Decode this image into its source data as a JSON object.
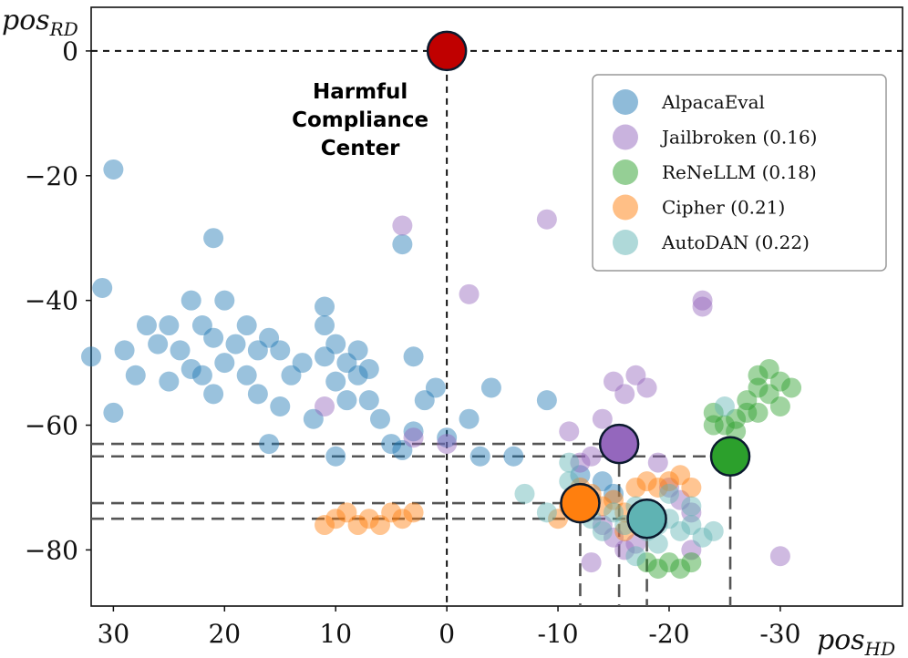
{
  "chart_data": {
    "type": "scatter",
    "xlabel": "pos",
    "xlabel_sub": "HD",
    "ylabel": "pos",
    "ylabel_sub": "RD",
    "xlim": [
      32,
      -41
    ],
    "ylim": [
      -89,
      7
    ],
    "x_ticks": [
      30,
      20,
      10,
      0,
      -10,
      -20,
      -30
    ],
    "x_tick_labels": [
      "30",
      "20",
      "10",
      "0",
      "-10",
      "-20",
      "-30"
    ],
    "y_ticks": [
      0,
      -20,
      -40,
      -60,
      -80
    ],
    "y_tick_labels": [
      "0",
      "−20",
      "−40",
      "−60",
      "−80"
    ],
    "annotation": {
      "lines": [
        "Harmful",
        "Compliance",
        "Center"
      ],
      "x": 0,
      "y": 0
    },
    "center": {
      "x": 0,
      "y": 0,
      "color": "#c00000"
    },
    "legend_position": "top-right",
    "series": [
      {
        "name": "AlpacaEval",
        "color": "#1f77b4",
        "centroid": null,
        "points": [
          [
            30,
            -19
          ],
          [
            31,
            -38
          ],
          [
            32,
            -49
          ],
          [
            30,
            -58
          ],
          [
            29,
            -48
          ],
          [
            28,
            -52
          ],
          [
            27,
            -44
          ],
          [
            26,
            -47
          ],
          [
            25,
            -44
          ],
          [
            25,
            -53
          ],
          [
            24,
            -48
          ],
          [
            23,
            -40
          ],
          [
            23,
            -51
          ],
          [
            22,
            -44
          ],
          [
            22,
            -52
          ],
          [
            21,
            -30
          ],
          [
            21,
            -46
          ],
          [
            21,
            -55
          ],
          [
            20,
            -40
          ],
          [
            20,
            -50
          ],
          [
            19,
            -47
          ],
          [
            18,
            -44
          ],
          [
            18,
            -52
          ],
          [
            17,
            -48
          ],
          [
            17,
            -55
          ],
          [
            16,
            -46
          ],
          [
            16,
            -63
          ],
          [
            15,
            -48
          ],
          [
            15,
            -57
          ],
          [
            14,
            -52
          ],
          [
            13,
            -50
          ],
          [
            12,
            -59
          ],
          [
            11,
            -41
          ],
          [
            11,
            -44
          ],
          [
            11,
            -49
          ],
          [
            10,
            -47
          ],
          [
            10,
            -53
          ],
          [
            10,
            -65
          ],
          [
            9,
            -50
          ],
          [
            9,
            -56
          ],
          [
            8,
            -48
          ],
          [
            8,
            -52
          ],
          [
            7,
            -51
          ],
          [
            7,
            -56
          ],
          [
            6,
            -59
          ],
          [
            5,
            -63
          ],
          [
            4,
            -31
          ],
          [
            4,
            -64
          ],
          [
            3,
            -49
          ],
          [
            3,
            -61
          ],
          [
            2,
            -56
          ],
          [
            1,
            -54
          ],
          [
            0,
            -62
          ],
          [
            -2,
            -59
          ],
          [
            -3,
            -65
          ],
          [
            -4,
            -54
          ],
          [
            -6,
            -65
          ],
          [
            -9,
            -56
          ],
          [
            -12,
            -68
          ],
          [
            -13,
            -72
          ],
          [
            -14,
            -69
          ],
          [
            -15,
            -71
          ]
        ]
      },
      {
        "name": "Jailbroken (0.16)",
        "color": "#9467bd",
        "centroid": [
          -15.5,
          -63
        ],
        "points": [
          [
            4,
            -28
          ],
          [
            0,
            -63
          ],
          [
            -2,
            -39
          ],
          [
            -9,
            -27
          ],
          [
            -11,
            -61
          ],
          [
            -12,
            -66
          ],
          [
            -13,
            -65
          ],
          [
            -14,
            -59
          ],
          [
            -15,
            -53
          ],
          [
            -16,
            -55
          ],
          [
            -17,
            -52
          ],
          [
            -18,
            -54
          ],
          [
            -19,
            -66
          ],
          [
            -20,
            -70
          ],
          [
            -21,
            -72
          ],
          [
            -22,
            -74
          ],
          [
            -23,
            -40
          ],
          [
            -23,
            -41
          ],
          [
            -14,
            -76
          ],
          [
            -15,
            -78
          ],
          [
            -16,
            -80
          ],
          [
            -17,
            -79
          ],
          [
            -13,
            -82
          ],
          [
            -22,
            -80
          ],
          [
            -30,
            -81
          ],
          [
            11,
            -57
          ],
          [
            3,
            -62
          ]
        ]
      },
      {
        "name": "ReNeLLM (0.18)",
        "color": "#2ca02c",
        "centroid": [
          -25.5,
          -65
        ],
        "points": [
          [
            -24,
            -60
          ],
          [
            -24,
            -58
          ],
          [
            -25,
            -60
          ],
          [
            -26,
            -59
          ],
          [
            -27,
            -58
          ],
          [
            -27,
            -56
          ],
          [
            -28,
            -54
          ],
          [
            -28,
            -52
          ],
          [
            -29,
            -51
          ],
          [
            -29,
            -55
          ],
          [
            -30,
            -53
          ],
          [
            -30,
            -57
          ],
          [
            -31,
            -54
          ],
          [
            -28,
            -58
          ],
          [
            -26,
            -61
          ],
          [
            -18,
            -82
          ],
          [
            -19,
            -83
          ],
          [
            -20,
            -82
          ],
          [
            -21,
            -83
          ],
          [
            -22,
            -82
          ]
        ]
      },
      {
        "name": "Cipher (0.21)",
        "color": "#ff7f0e",
        "centroid": [
          -12,
          -72.5
        ],
        "points": [
          [
            3,
            -74
          ],
          [
            4,
            -75
          ],
          [
            5,
            -74
          ],
          [
            6,
            -76
          ],
          [
            7,
            -75
          ],
          [
            8,
            -76
          ],
          [
            9,
            -74
          ],
          [
            10,
            -75
          ],
          [
            11,
            -76
          ],
          [
            -12,
            -70
          ],
          [
            -13,
            -71
          ],
          [
            -14,
            -73
          ],
          [
            -15,
            -72
          ],
          [
            -16,
            -74
          ],
          [
            -17,
            -70
          ],
          [
            -18,
            -69
          ],
          [
            -19,
            -70
          ],
          [
            -20,
            -69
          ],
          [
            -21,
            -68
          ],
          [
            -22,
            -70
          ],
          [
            -11,
            -73
          ],
          [
            -10,
            -75
          ],
          [
            -16,
            -77
          ],
          [
            -18,
            -76
          ]
        ]
      },
      {
        "name": "AutoDAN (0.22)",
        "color": "#5fb3b3",
        "centroid": [
          -18,
          -75
        ],
        "points": [
          [
            -7,
            -71
          ],
          [
            -9,
            -74
          ],
          [
            -11,
            -66
          ],
          [
            -11,
            -69
          ],
          [
            -13,
            -75
          ],
          [
            -14,
            -77
          ],
          [
            -15,
            -74
          ],
          [
            -16,
            -76
          ],
          [
            -17,
            -73
          ],
          [
            -18,
            -77
          ],
          [
            -19,
            -76
          ],
          [
            -20,
            -75
          ],
          [
            -21,
            -77
          ],
          [
            -22,
            -76
          ],
          [
            -23,
            -78
          ],
          [
            -24,
            -77
          ],
          [
            -22,
            -73
          ],
          [
            -20,
            -71
          ],
          [
            -25,
            -57
          ],
          [
            -19,
            -79
          ],
          [
            -17,
            -81
          ]
        ]
      }
    ]
  }
}
